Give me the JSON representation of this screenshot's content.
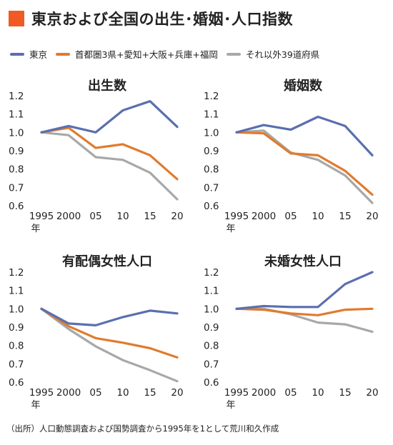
{
  "header": {
    "title": "東京および全国の出生･婚姻･人口指数",
    "accent_color": "#f15a24"
  },
  "legend": [
    {
      "name": "東京",
      "color": "#5a6fb0"
    },
    {
      "name": "首都圏3県+愛知+大阪+兵庫+福岡",
      "color": "#e07b2e"
    },
    {
      "name": "それ以外39道府県",
      "color": "#a8a8a8"
    }
  ],
  "source_note": "（出所）人口動態調査および国勢調査から1995年を1として荒川和久作成",
  "chart_data": [
    {
      "type": "line",
      "title": "出生数",
      "x": [
        1995,
        2000,
        2005,
        2010,
        2015,
        2020
      ],
      "x_tick_labels": [
        "1995",
        "2000",
        "05",
        "10",
        "15",
        "20"
      ],
      "x_unit_label": "年",
      "ylim": [
        0.6,
        1.2
      ],
      "y_ticks": [
        "0.6",
        "0.7",
        "0.8",
        "0.9",
        "1.0",
        "1.1",
        "1.2"
      ],
      "grid": false,
      "series": [
        {
          "name": "東京",
          "values": [
            1.0,
            1.035,
            1.0,
            1.12,
            1.17,
            1.03
          ]
        },
        {
          "name": "首都圏3県+愛知+大阪+兵庫+福岡",
          "values": [
            1.0,
            1.025,
            0.915,
            0.935,
            0.875,
            0.745
          ]
        },
        {
          "name": "それ以外39道府県",
          "values": [
            1.0,
            0.985,
            0.865,
            0.85,
            0.78,
            0.635
          ]
        }
      ]
    },
    {
      "type": "line",
      "title": "婚姻数",
      "x": [
        1995,
        2000,
        2005,
        2010,
        2015,
        2020
      ],
      "x_tick_labels": [
        "1995",
        "2000",
        "05",
        "10",
        "15",
        "20"
      ],
      "x_unit_label": "年",
      "ylim": [
        0.6,
        1.2
      ],
      "y_ticks": [
        "0.6",
        "0.7",
        "0.8",
        "0.9",
        "1.0",
        "1.1",
        "1.2"
      ],
      "grid": false,
      "series": [
        {
          "name": "東京",
          "values": [
            1.0,
            1.04,
            1.015,
            1.085,
            1.035,
            0.875
          ]
        },
        {
          "name": "首都圏3県+愛知+大阪+兵庫+福岡",
          "values": [
            1.0,
            0.995,
            0.885,
            0.875,
            0.79,
            0.66
          ]
        },
        {
          "name": "それ以外39道府県",
          "values": [
            1.0,
            1.01,
            0.89,
            0.85,
            0.765,
            0.615
          ]
        }
      ]
    },
    {
      "type": "line",
      "title": "有配偶女性人口",
      "x": [
        1995,
        2000,
        2005,
        2010,
        2015,
        2020
      ],
      "x_tick_labels": [
        "1995",
        "2000",
        "05",
        "10",
        "15",
        "20"
      ],
      "x_unit_label": "年",
      "ylim": [
        0.6,
        1.2
      ],
      "y_ticks": [
        "0.6",
        "0.7",
        "0.8",
        "0.9",
        "1.0",
        "1.1",
        "1.2"
      ],
      "grid": false,
      "series": [
        {
          "name": "東京",
          "values": [
            1.0,
            0.92,
            0.91,
            0.955,
            0.99,
            0.975
          ]
        },
        {
          "name": "首都圏3県+愛知+大阪+兵庫+福岡",
          "values": [
            1.0,
            0.905,
            0.84,
            0.815,
            0.785,
            0.735
          ]
        },
        {
          "name": "それ以外39道府県",
          "values": [
            1.0,
            0.89,
            0.795,
            0.72,
            0.665,
            0.605
          ]
        }
      ]
    },
    {
      "type": "line",
      "title": "未婚女性人口",
      "x": [
        1995,
        2000,
        2005,
        2010,
        2015,
        2020
      ],
      "x_tick_labels": [
        "1995",
        "2000",
        "05",
        "10",
        "15",
        "20"
      ],
      "x_unit_label": "年",
      "ylim": [
        0.6,
        1.2
      ],
      "y_ticks": [
        "0.6",
        "0.7",
        "0.8",
        "0.9",
        "1.0",
        "1.1",
        "1.2"
      ],
      "grid": false,
      "series": [
        {
          "name": "東京",
          "values": [
            1.0,
            1.015,
            1.01,
            1.01,
            1.135,
            1.2
          ]
        },
        {
          "name": "首都圏3県+愛知+大阪+兵庫+福岡",
          "values": [
            1.0,
            0.995,
            0.975,
            0.965,
            0.995,
            1.0
          ]
        },
        {
          "name": "それ以外39道府県",
          "values": [
            1.0,
            1.0,
            0.97,
            0.925,
            0.915,
            0.875
          ]
        }
      ]
    }
  ]
}
